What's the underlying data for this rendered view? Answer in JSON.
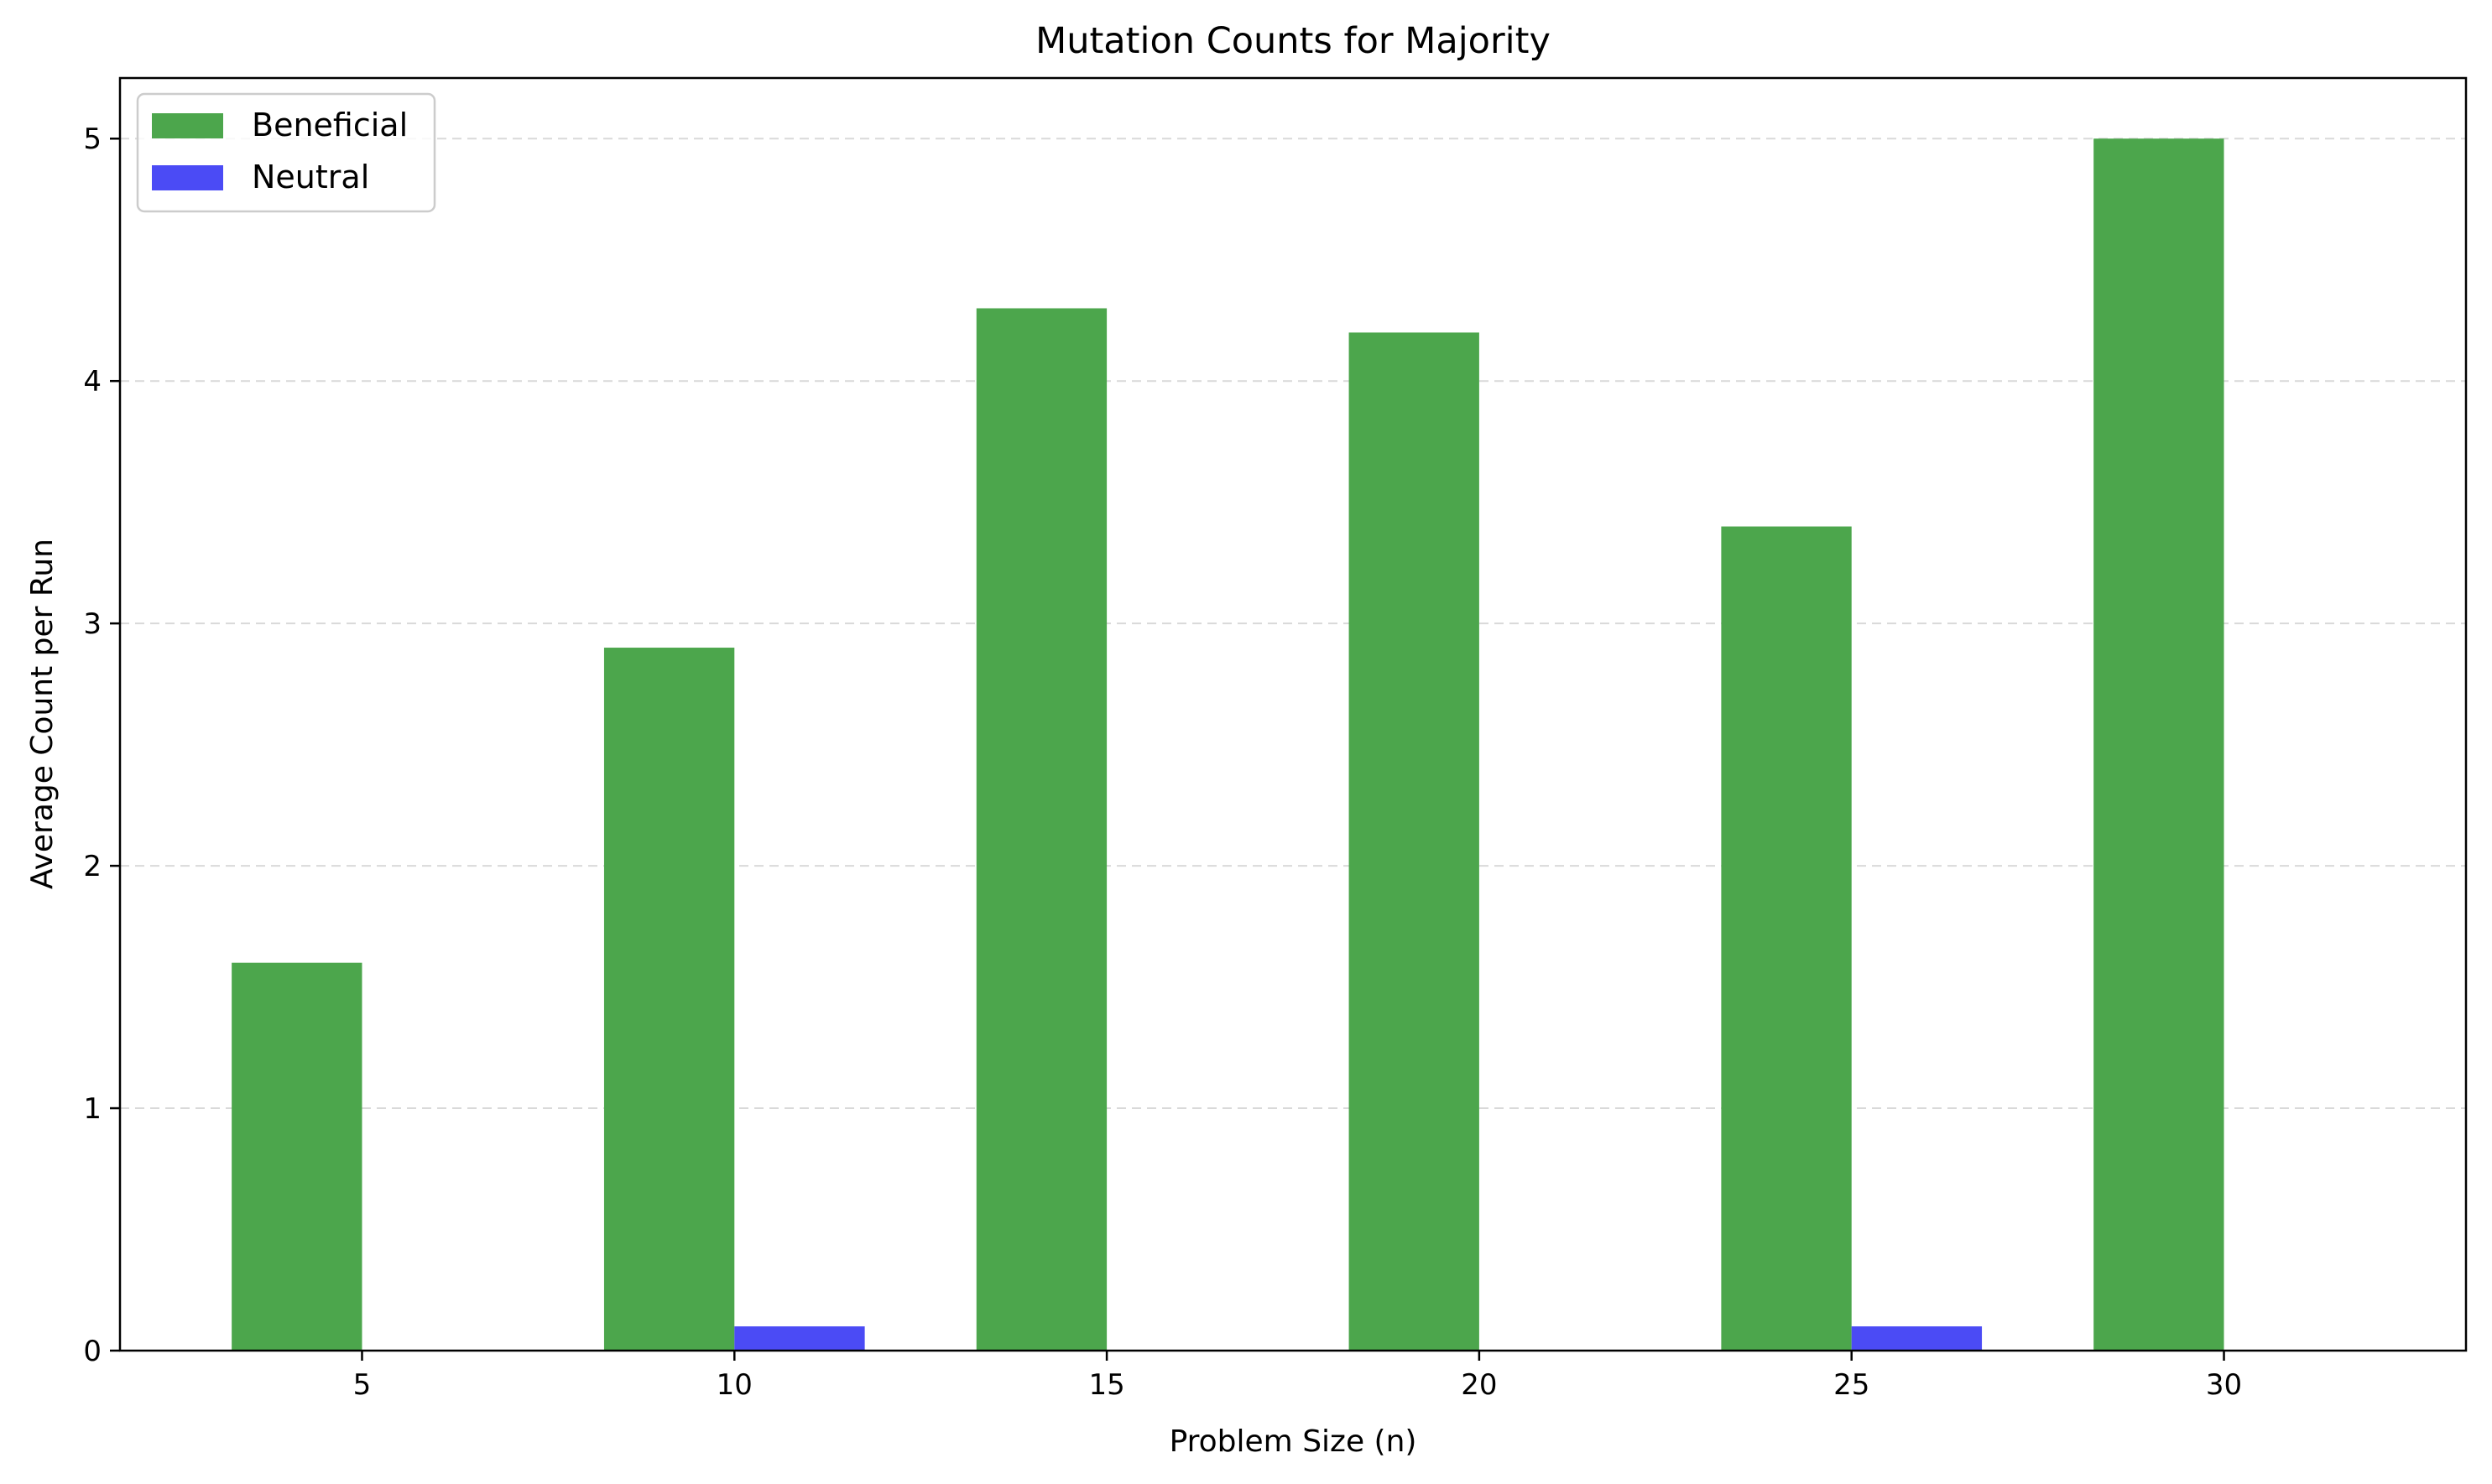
{
  "chart_data": {
    "type": "bar",
    "title": "Mutation Counts for Majority",
    "xlabel": "Problem Size (n)",
    "ylabel": "Average Count per Run",
    "categories": [
      "5",
      "10",
      "15",
      "20",
      "25",
      "30"
    ],
    "x": [
      5,
      10,
      15,
      20,
      25,
      30
    ],
    "xlim": [
      1.75,
      33.25
    ],
    "ylim": [
      0,
      5.25
    ],
    "yticks": [
      "0",
      "1",
      "2",
      "3",
      "4",
      "5"
    ],
    "grid": "horizontal dashed",
    "legend_position": "top-left",
    "series": [
      {
        "name": "Beneficial",
        "color": "#4ca64c",
        "values": [
          1.6,
          2.9,
          4.3,
          4.2,
          3.4,
          5.0
        ]
      },
      {
        "name": "Neutral",
        "color": "#4b4bf5",
        "values": [
          0.0,
          0.1,
          0.0,
          0.0,
          0.1,
          0.0
        ]
      }
    ]
  }
}
